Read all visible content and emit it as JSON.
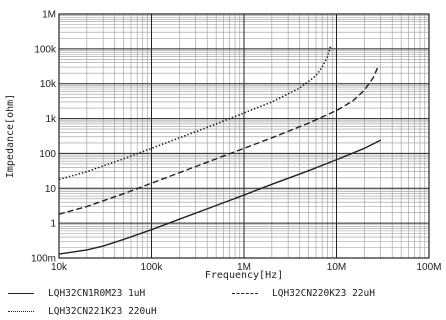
{
  "chart_data": {
    "type": "line",
    "xlabel": "Frequency[Hz]",
    "ylabel": "Impedance[ohm]",
    "xscale": "log",
    "yscale": "log",
    "xlim": [
      10000,
      100000000
    ],
    "ylim": [
      0.1,
      1000000
    ],
    "grid": true,
    "legend_position": "bottom",
    "x_tick_labels": [
      "10k",
      "100k",
      "1M",
      "10M",
      "100M"
    ],
    "y_tick_labels": [
      "100m",
      "1",
      "10",
      "100",
      "1k",
      "10k",
      "100k",
      "1M"
    ],
    "series": [
      {
        "name": "LQH32CN1R0M23 1uH",
        "style": "solid",
        "x": [
          10000,
          20000,
          30000,
          50000,
          100000,
          200000,
          500000,
          1000000,
          2000000,
          5000000,
          10000000,
          20000000,
          30000000
        ],
        "y": [
          0.13,
          0.17,
          0.22,
          0.34,
          0.65,
          1.3,
          3.2,
          6.4,
          13,
          32,
          66,
          140,
          240
        ]
      },
      {
        "name": "LQH32CN220K23 22uH",
        "style": "dashed",
        "x": [
          10000,
          20000,
          50000,
          100000,
          200000,
          500000,
          1000000,
          2000000,
          5000000,
          10000000,
          15000000,
          20000000,
          25000000,
          28000000
        ],
        "y": [
          1.8,
          3.0,
          7.0,
          14,
          28,
          70,
          140,
          280,
          740,
          1700,
          3200,
          6500,
          15000,
          30000
        ]
      },
      {
        "name": "LQH32CN221K23 220uH",
        "style": "dotted",
        "x": [
          10000,
          20000,
          50000,
          100000,
          200000,
          500000,
          1000000,
          2000000,
          4000000,
          6000000,
          7000000,
          8000000,
          8700000
        ],
        "y": [
          18,
          30,
          70,
          140,
          280,
          700,
          1450,
          3000,
          7500,
          17000,
          30000,
          60000,
          130000
        ]
      }
    ]
  }
}
